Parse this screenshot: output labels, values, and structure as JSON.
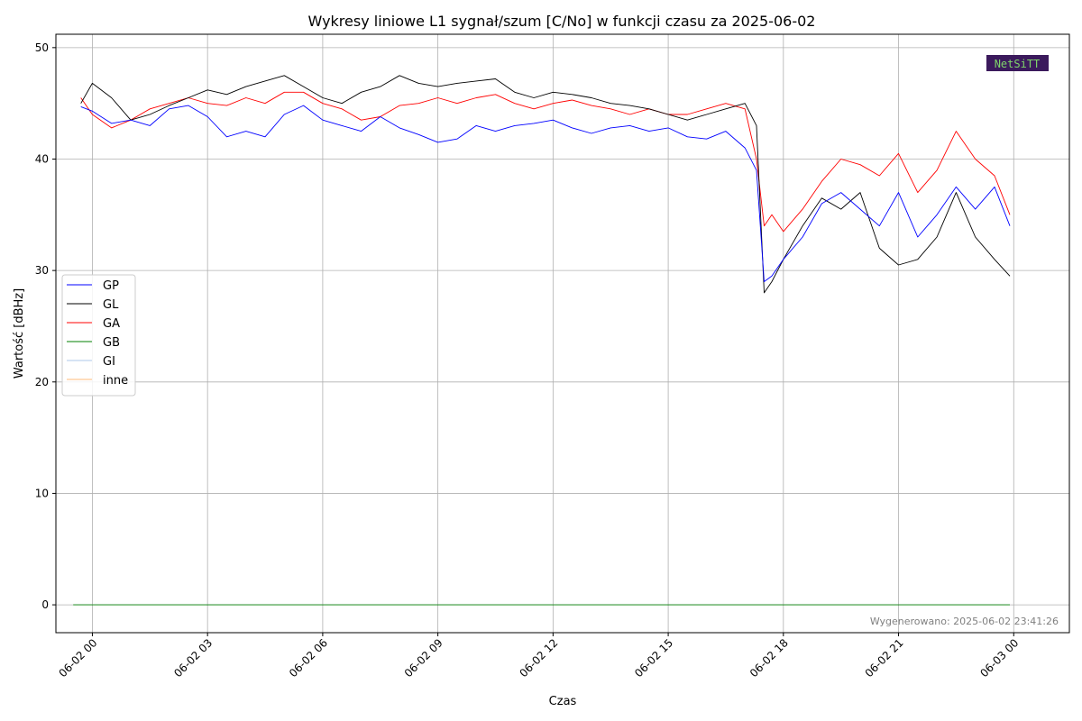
{
  "chart_data": {
    "type": "line",
    "title": "Wykresy liniowe L1 sygnał/szum [C/No] w funkcji czasu za 2025-06-02",
    "xlabel": "Czas",
    "ylabel": "Wartość [dBHz]",
    "ylim": [
      -2.5,
      51.2
    ],
    "xlim_hours": [
      -0.95,
      25.45
    ],
    "x_ticks": [
      {
        "h": 0,
        "label": "06-02 00"
      },
      {
        "h": 3,
        "label": "06-02 03"
      },
      {
        "h": 6,
        "label": "06-02 06"
      },
      {
        "h": 9,
        "label": "06-02 09"
      },
      {
        "h": 12,
        "label": "06-02 12"
      },
      {
        "h": 15,
        "label": "06-02 15"
      },
      {
        "h": 18,
        "label": "06-02 18"
      },
      {
        "h": 21,
        "label": "06-02 21"
      },
      {
        "h": 24,
        "label": "06-03 00"
      }
    ],
    "y_ticks": [
      0,
      10,
      20,
      30,
      40,
      50
    ],
    "grid": true,
    "legend_position": "center-left",
    "footnote": "Wygenerowano: 2025-06-02 23:41:26",
    "watermark": "NetSiTT",
    "series": [
      {
        "name": "GP",
        "color": "#0000ff",
        "x": [
          -0.3,
          0.0,
          0.5,
          1.0,
          1.5,
          2.0,
          2.5,
          3.0,
          3.5,
          4.0,
          4.5,
          5.0,
          5.5,
          6.0,
          6.5,
          7.0,
          7.5,
          8.0,
          8.5,
          9.0,
          9.5,
          10.0,
          10.5,
          11.0,
          11.5,
          12.0,
          12.5,
          13.0,
          13.5,
          14.0,
          14.5,
          15.0,
          15.5,
          16.0,
          16.5,
          17.0,
          17.3,
          17.5,
          17.7,
          18.0,
          18.5,
          19.0,
          19.5,
          20.0,
          20.5,
          21.0,
          21.5,
          22.0,
          22.5,
          23.0,
          23.5,
          23.9
        ],
        "y": [
          44.7,
          44.3,
          43.2,
          43.5,
          43.0,
          44.5,
          44.8,
          43.8,
          42.0,
          42.5,
          42.0,
          44.0,
          44.8,
          43.5,
          43.0,
          42.5,
          43.8,
          42.8,
          42.2,
          41.5,
          41.8,
          43.0,
          42.5,
          43.0,
          43.2,
          43.5,
          42.8,
          42.3,
          42.8,
          43.0,
          42.5,
          42.8,
          42.0,
          41.8,
          42.5,
          41.0,
          39.0,
          29.0,
          29.5,
          31.0,
          33.0,
          36.0,
          37.0,
          35.5,
          34.0,
          37.0,
          33.0,
          35.0,
          37.5,
          35.5,
          37.5,
          34.0
        ]
      },
      {
        "name": "GL",
        "color": "#000000",
        "x": [
          -0.3,
          0.0,
          0.5,
          1.0,
          1.5,
          2.0,
          2.5,
          3.0,
          3.5,
          4.0,
          4.5,
          5.0,
          5.5,
          6.0,
          6.5,
          7.0,
          7.5,
          8.0,
          8.5,
          9.0,
          9.5,
          10.0,
          10.5,
          11.0,
          11.5,
          12.0,
          12.5,
          13.0,
          13.5,
          14.0,
          14.5,
          15.0,
          15.5,
          16.0,
          16.5,
          17.0,
          17.3,
          17.5,
          17.7,
          18.0,
          18.5,
          19.0,
          19.5,
          20.0,
          20.5,
          21.0,
          21.5,
          22.0,
          22.5,
          23.0,
          23.5,
          23.9
        ],
        "y": [
          45.0,
          46.8,
          45.5,
          43.5,
          44.0,
          44.8,
          45.5,
          46.2,
          45.8,
          46.5,
          47.0,
          47.5,
          46.5,
          45.5,
          45.0,
          46.0,
          46.5,
          47.5,
          46.8,
          46.5,
          46.8,
          47.0,
          47.2,
          46.0,
          45.5,
          46.0,
          45.8,
          45.5,
          45.0,
          44.8,
          44.5,
          44.0,
          43.5,
          44.0,
          44.5,
          45.0,
          43.0,
          28.0,
          29.0,
          31.0,
          34.0,
          36.5,
          35.5,
          37.0,
          32.0,
          30.5,
          31.0,
          33.0,
          37.0,
          33.0,
          31.0,
          29.5
        ]
      },
      {
        "name": "GA",
        "color": "#ff0000",
        "x": [
          -0.3,
          0.0,
          0.5,
          1.0,
          1.5,
          2.0,
          2.5,
          3.0,
          3.5,
          4.0,
          4.5,
          5.0,
          5.5,
          6.0,
          6.5,
          7.0,
          7.5,
          8.0,
          8.5,
          9.0,
          9.5,
          10.0,
          10.5,
          11.0,
          11.5,
          12.0,
          12.5,
          13.0,
          13.5,
          14.0,
          14.5,
          15.0,
          15.5,
          16.0,
          16.5,
          17.0,
          17.3,
          17.5,
          17.7,
          18.0,
          18.5,
          19.0,
          19.5,
          20.0,
          20.5,
          21.0,
          21.5,
          22.0,
          22.5,
          23.0,
          23.5,
          23.9
        ],
        "y": [
          45.5,
          44.0,
          42.8,
          43.5,
          44.5,
          45.0,
          45.5,
          45.0,
          44.8,
          45.5,
          45.0,
          46.0,
          46.0,
          45.0,
          44.5,
          43.5,
          43.8,
          44.8,
          45.0,
          45.5,
          45.0,
          45.5,
          45.8,
          45.0,
          44.5,
          45.0,
          45.3,
          44.8,
          44.5,
          44.0,
          44.5,
          44.0,
          44.0,
          44.5,
          45.0,
          44.5,
          40.0,
          34.0,
          35.0,
          33.5,
          35.5,
          38.0,
          40.0,
          39.5,
          38.5,
          40.5,
          37.0,
          39.0,
          42.5,
          40.0,
          38.5,
          35.0
        ]
      },
      {
        "name": "GB",
        "color": "#008000",
        "x": [
          -0.5,
          23.9
        ],
        "y": [
          0.0,
          0.0
        ]
      },
      {
        "name": "GI",
        "color": "#aec7e8",
        "x": [
          -0.5,
          23.9
        ],
        "y": [
          0.0,
          0.0
        ]
      },
      {
        "name": "inne",
        "color": "#ffbb78",
        "x": [
          -0.5,
          23.9
        ],
        "y": [
          0.0,
          0.0
        ]
      }
    ]
  }
}
